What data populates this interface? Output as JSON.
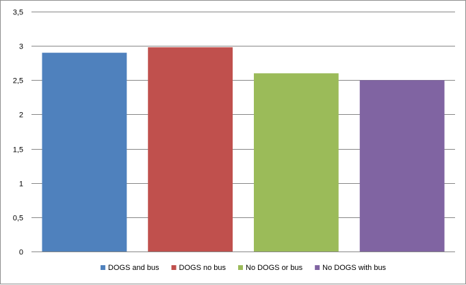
{
  "chart_data": {
    "type": "bar",
    "categories": [
      "DOGS and bus",
      "DOGS no bus",
      "No DOGS or bus",
      "No DOGS with bus"
    ],
    "values": [
      2.9,
      2.98,
      2.6,
      2.5
    ],
    "colors": [
      "#4f81bd",
      "#c0504d",
      "#9bbb59",
      "#8064a2"
    ],
    "ylim": [
      0,
      3.5
    ],
    "yticks": [
      0,
      0.5,
      1,
      1.5,
      2,
      2.5,
      3,
      3.5
    ],
    "ytick_labels": [
      "0",
      "0,5",
      "1",
      "1,5",
      "2",
      "2,5",
      "3",
      "3,5"
    ],
    "grid": true,
    "legend": {
      "position": "bottom",
      "entries": [
        "DOGS and bus",
        "DOGS no bus",
        "No DOGS or bus",
        "No DOGS with bus"
      ]
    },
    "title": "",
    "xlabel": "",
    "ylabel": ""
  }
}
